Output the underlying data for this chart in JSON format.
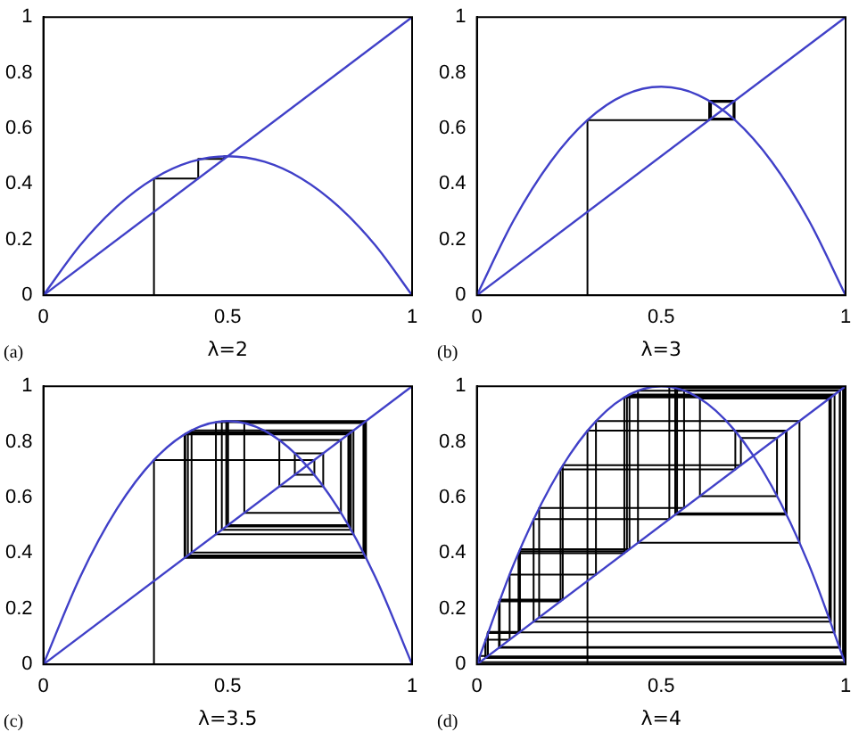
{
  "chart_data": [
    {
      "type": "line",
      "xlabel": "λ=2",
      "annotations": [
        "(a)"
      ],
      "xlim": [
        0,
        1
      ],
      "ylim": [
        0,
        1
      ],
      "xticks": [
        0,
        0.5,
        1
      ],
      "yticks": [
        0,
        0.2,
        0.4,
        0.6,
        0.8,
        1
      ],
      "marker": "none",
      "line_style": "solid",
      "series": [
        {
          "color": "#4040c8",
          "x": [
            0,
            0.1,
            0.2,
            0.3,
            0.4,
            0.5,
            0.6,
            0.7,
            0.8,
            0.9,
            1
          ],
          "values": [
            0,
            0.18,
            0.32,
            0.42,
            0.48,
            0.5,
            0.48,
            0.42,
            0.32,
            0.18,
            0
          ]
        },
        {
          "color": "#4040c8",
          "x": [
            0,
            1
          ],
          "values": [
            0,
            1
          ]
        },
        {
          "color": "#000000",
          "x": [
            0.3,
            0.3,
            0.42,
            0.42,
            0.49,
            0.49,
            0.5
          ],
          "values": [
            0,
            0.42,
            0.42,
            0.49,
            0.49,
            0.5,
            0.5
          ]
        }
      ]
    },
    {
      "type": "line",
      "xlabel": "λ=3",
      "annotations": [
        "(b)"
      ],
      "xlim": [
        0,
        1
      ],
      "ylim": [
        0,
        1
      ],
      "xticks": [
        0,
        0.5,
        1
      ],
      "yticks": [
        0,
        0.2,
        0.4,
        0.6,
        0.8,
        1
      ],
      "marker": "none",
      "line_style": "solid",
      "series": [
        {
          "color": "#4040c8",
          "x": [
            0,
            0.1,
            0.2,
            0.3,
            0.4,
            0.5,
            0.6,
            0.7,
            0.8,
            0.9,
            1
          ],
          "values": [
            0,
            0.27,
            0.48,
            0.63,
            0.72,
            0.75,
            0.72,
            0.63,
            0.48,
            0.27,
            0
          ]
        },
        {
          "color": "#4040c8",
          "x": [
            0,
            1
          ],
          "values": [
            0,
            1
          ]
        },
        {
          "color": "#000000",
          "x": [
            0.3,
            0.3,
            0.63,
            0.63,
            0.699,
            0.699,
            0.631,
            0.631,
            0.699,
            0.699,
            0.632,
            0.632,
            0.698,
            0.698,
            0.632,
            0.632,
            0.697,
            0.697,
            0.633,
            0.633,
            0.697,
            0.697,
            0.634,
            0.634,
            0.696,
            0.696,
            0.635,
            0.635,
            0.695
          ],
          "values": [
            0,
            0.63,
            0.63,
            0.699,
            0.699,
            0.631,
            0.631,
            0.699,
            0.699,
            0.632,
            0.632,
            0.698,
            0.698,
            0.632,
            0.632,
            0.697,
            0.697,
            0.633,
            0.633,
            0.697,
            0.697,
            0.634,
            0.634,
            0.696,
            0.696,
            0.635,
            0.635,
            0.695,
            0.695
          ]
        }
      ]
    },
    {
      "type": "line",
      "xlabel": "λ=3.5",
      "annotations": [
        "(c)"
      ],
      "xlim": [
        0,
        1
      ],
      "ylim": [
        0,
        1
      ],
      "xticks": [
        0,
        0.5,
        1
      ],
      "yticks": [
        0,
        0.2,
        0.4,
        0.6,
        0.8,
        1
      ],
      "marker": "none",
      "line_style": "solid",
      "series": [
        {
          "color": "#4040c8",
          "x": [
            0,
            0.1,
            0.2,
            0.3,
            0.4,
            0.5,
            0.6,
            0.7,
            0.8,
            0.9,
            1
          ],
          "values": [
            0,
            0.315,
            0.56,
            0.735,
            0.84,
            0.875,
            0.84,
            0.735,
            0.56,
            0.315,
            0
          ]
        },
        {
          "color": "#4040c8",
          "x": [
            0,
            1
          ],
          "values": [
            0,
            1
          ]
        },
        {
          "color": "#000000",
          "x": [
            0.3,
            0.3,
            0.735,
            0.735,
            0.682,
            0.682,
            0.759,
            0.759,
            0.64,
            0.64,
            0.807,
            0.807,
            0.545,
            0.545,
            0.868,
            0.868,
            0.402,
            0.402,
            0.841,
            0.841,
            0.468,
            0.468,
            0.871,
            0.871,
            0.392,
            0.392,
            0.834,
            0.834,
            0.484,
            0.484,
            0.874,
            0.874,
            0.385,
            0.385,
            0.829,
            0.829,
            0.496,
            0.496,
            0.875,
            0.875,
            0.383,
            0.383,
            0.827,
            0.827,
            0.501,
            0.501,
            0.875,
            0.875,
            0.383
          ],
          "values": [
            0,
            0.735,
            0.735,
            0.682,
            0.682,
            0.759,
            0.759,
            0.64,
            0.64,
            0.807,
            0.807,
            0.545,
            0.545,
            0.868,
            0.868,
            0.402,
            0.402,
            0.841,
            0.841,
            0.468,
            0.468,
            0.871,
            0.871,
            0.392,
            0.392,
            0.834,
            0.834,
            0.484,
            0.484,
            0.874,
            0.874,
            0.385,
            0.385,
            0.829,
            0.829,
            0.496,
            0.496,
            0.875,
            0.875,
            0.383,
            0.383,
            0.827,
            0.827,
            0.501,
            0.501,
            0.875,
            0.875,
            0.383,
            0.383
          ]
        }
      ]
    },
    {
      "type": "line",
      "xlabel": "λ=4",
      "annotations": [
        "(d)"
      ],
      "xlim": [
        0,
        1
      ],
      "ylim": [
        0,
        1
      ],
      "xticks": [
        0,
        0.5,
        1
      ],
      "yticks": [
        0,
        0.2,
        0.4,
        0.6,
        0.8,
        1
      ],
      "marker": "none",
      "line_style": "solid",
      "series": [
        {
          "color": "#4040c8",
          "x": [
            0,
            0.1,
            0.2,
            0.3,
            0.4,
            0.5,
            0.6,
            0.7,
            0.8,
            0.9,
            1
          ],
          "values": [
            0,
            0.36,
            0.64,
            0.84,
            0.96,
            1,
            0.96,
            0.84,
            0.64,
            0.36,
            0
          ]
        },
        {
          "color": "#4040c8",
          "x": [
            0,
            1
          ],
          "values": [
            0,
            1
          ]
        },
        {
          "color": "#000000",
          "x": [
            0.3,
            0.3,
            0.84,
            0.84,
            0.538,
            0.538,
            0.994,
            0.994,
            0.023,
            0.023,
            0.089,
            0.089,
            0.323,
            0.323,
            0.875,
            0.875,
            0.437,
            0.437,
            0.984,
            0.984,
            0.062,
            0.062,
            0.233,
            0.233,
            0.716,
            0.716,
            0.814,
            0.814,
            0.605,
            0.605,
            0.956,
            0.956,
            0.169,
            0.169,
            0.562,
            0.562,
            0.985,
            0.985,
            0.06,
            0.06,
            0.227,
            0.227,
            0.701,
            0.701,
            0.838,
            0.838,
            0.543,
            0.543,
            0.993,
            0.993,
            0.029,
            0.029,
            0.113,
            0.113,
            0.4,
            0.4,
            0.96,
            0.96,
            0.154,
            0.154,
            0.522,
            0.522,
            0.998,
            0.998,
            0.008,
            0.008,
            0.03,
            0.03,
            0.117,
            0.117,
            0.414,
            0.414,
            0.97,
            0.97,
            0.115,
            0.115,
            0.407,
            0.407,
            0.965
          ],
          "values": [
            0,
            0.84,
            0.84,
            0.538,
            0.538,
            0.994,
            0.994,
            0.023,
            0.023,
            0.089,
            0.089,
            0.323,
            0.323,
            0.875,
            0.875,
            0.437,
            0.437,
            0.984,
            0.984,
            0.062,
            0.062,
            0.233,
            0.233,
            0.716,
            0.716,
            0.814,
            0.814,
            0.605,
            0.605,
            0.956,
            0.956,
            0.169,
            0.169,
            0.562,
            0.562,
            0.985,
            0.985,
            0.06,
            0.06,
            0.227,
            0.227,
            0.701,
            0.701,
            0.838,
            0.838,
            0.543,
            0.543,
            0.993,
            0.993,
            0.029,
            0.029,
            0.113,
            0.113,
            0.4,
            0.4,
            0.96,
            0.96,
            0.154,
            0.154,
            0.522,
            0.522,
            0.998,
            0.998,
            0.008,
            0.008,
            0.03,
            0.03,
            0.117,
            0.117,
            0.414,
            0.414,
            0.97,
            0.97,
            0.115,
            0.115,
            0.407,
            0.407,
            0.965,
            0.965
          ]
        }
      ]
    }
  ]
}
